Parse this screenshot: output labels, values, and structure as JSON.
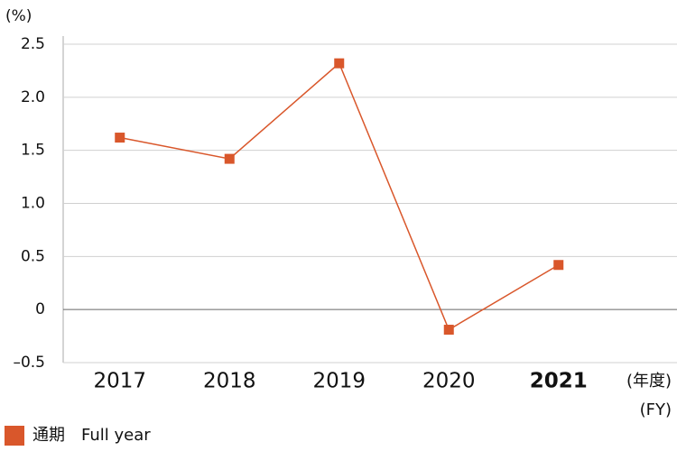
{
  "chart_data": {
    "type": "line",
    "y_label": "(%)",
    "x_label": [
      "(年度)",
      "(FY)"
    ],
    "categories": [
      "2017",
      "2018",
      "2019",
      "2020",
      "2021"
    ],
    "series": [
      {
        "name": "通期　Full year",
        "color": "#d9572b",
        "values": [
          1.62,
          1.42,
          2.32,
          -0.19,
          0.42
        ]
      }
    ],
    "ylim": [
      -0.5,
      2.5
    ],
    "yticks": [
      {
        "value": -0.5,
        "label": "–0.5"
      },
      0,
      0.5,
      {
        "value": 1,
        "label": "1.0"
      },
      1.5,
      {
        "value": 2,
        "label": "2.0"
      },
      2.5
    ],
    "grid": true,
    "legend": "bottom-left",
    "marker": "square"
  }
}
